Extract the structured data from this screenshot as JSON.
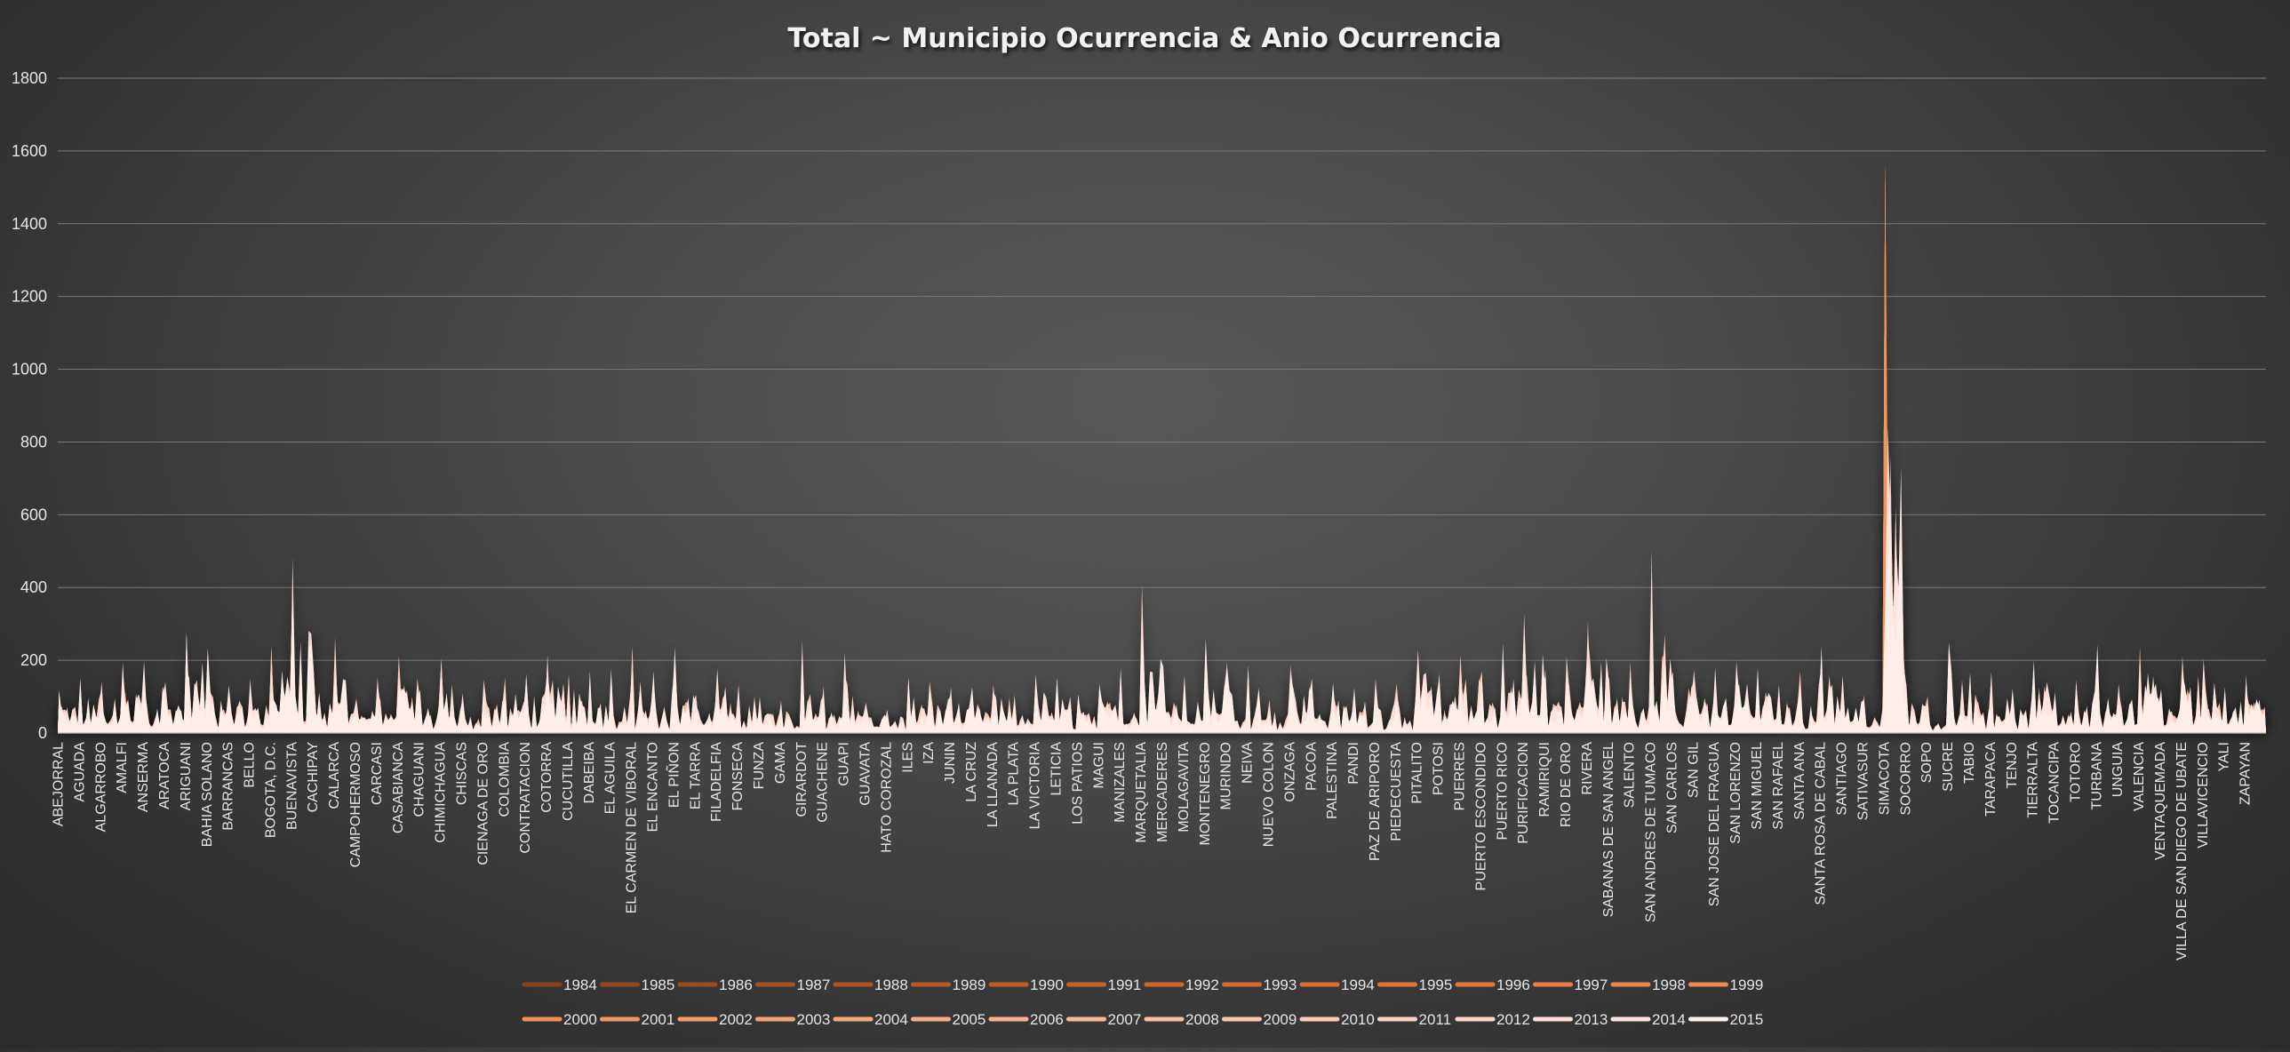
{
  "chart_data": {
    "type": "area",
    "title": "Total ~ Municipio Ocurrencia & Anio Ocurrencia",
    "xlabel": "",
    "ylabel": "",
    "ylim": [
      0,
      1800
    ],
    "yticks": [
      0,
      200,
      400,
      600,
      800,
      1000,
      1200,
      1400,
      1600,
      1800
    ],
    "grid": true,
    "legend_position": "bottom",
    "categories": [
      "ABEJORRAL",
      "AGUADA",
      "ALGARROBO",
      "AMALFI",
      "ANSERMA",
      "ARATOCA",
      "ARIGUANI",
      "BAHIA SOLANO",
      "BARRANCAS",
      "BELLO",
      "BOGOTA, D.C.",
      "BUENAVISTA",
      "CACHIPAY",
      "CALARCA",
      "CAMPOHERMOSO",
      "CARCASI",
      "CASABIANCA",
      "CHAGUANI",
      "CHIMICHAGUA",
      "CHISCAS",
      "CIENAGA DE ORO",
      "COLOMBIA",
      "CONTRATACION",
      "COTORRA",
      "CUCUTILLA",
      "DABEIBA",
      "EL AGUILA",
      "EL CARMEN DE VIBORAL",
      "EL ENCANTO",
      "EL PIÑON",
      "EL TARRA",
      "FILADELFIA",
      "FONSECA",
      "FUNZA",
      "GAMA",
      "GIRARDOT",
      "GUACHENE",
      "GUAPI",
      "GUAVATA",
      "HATO COROZAL",
      "ILES",
      "IZA",
      "JUNIN",
      "LA CRUZ",
      "LA LLANADA",
      "LA PLATA",
      "LA VICTORIA",
      "LETICIA",
      "LOS PATIOS",
      "MAGUI",
      "MANIZALES",
      "MARQUETALIA",
      "MERCADERES",
      "MOLAGAVITA",
      "MONTENEGRO",
      "MURINDO",
      "NEIVA",
      "NUEVO COLON",
      "ONZAGA",
      "PACOA",
      "PALESTINA",
      "PANDI",
      "PAZ DE ARIPORO",
      "PIEDECUESTA",
      "PITALITO",
      "POTOSI",
      "PUERRES",
      "PUERTO ESCONDIDO",
      "PUERTO RICO",
      "PURIFICACION",
      "RAMIRIQUI",
      "RIO DE ORO",
      "RIVERA",
      "SABANAS DE SAN ANGEL",
      "SALENTO",
      "SAN ANDRES DE TUMACO",
      "SAN CARLOS",
      "SAN GIL",
      "SAN JOSE DEL FRAGUA",
      "SAN LORENZO",
      "SAN MIGUEL",
      "SAN RAFAEL",
      "SANTA ANA",
      "SANTA ROSA DE CABAL",
      "SANTIAGO",
      "SATIVASUR",
      "SIMACOTA",
      "SOCORRO",
      "SOPO",
      "SUCRE",
      "TABIO",
      "TARAPACA",
      "TENJO",
      "TIERRALTA",
      "TOCANCIPA",
      "TOTORO",
      "TURBANA",
      "UNGUIA",
      "VALENCIA",
      "VENTAQUEMADA",
      "VILLA DE SAN DIEGO DE UBATE",
      "VILLAVICENCIO",
      "YALI",
      "ZAPAYAN"
    ],
    "values_max_estimated": [
      145,
      160,
      150,
      220,
      225,
      160,
      285,
      240,
      160,
      150,
      275,
      540,
      200,
      290,
      100,
      160,
      250,
      135,
      235,
      110,
      165,
      165,
      180,
      220,
      185,
      185,
      185,
      255,
      180,
      250,
      110,
      200,
      160,
      110,
      95,
      280,
      140,
      230,
      90,
      75,
      185,
      160,
      130,
      130,
      160,
      120,
      175,
      165,
      110,
      150,
      195,
      440,
      200,
      190,
      310,
      225,
      210,
      100,
      210,
      155,
      140,
      145,
      155,
      145,
      255,
      180,
      240,
      190,
      270,
      340,
      180,
      230,
      350,
      165,
      215,
      535,
      200,
      180,
      190,
      210,
      190,
      140,
      205,
      245,
      170,
      110,
      1560,
      140,
      120,
      300,
      175,
      190,
      130,
      210,
      125,
      170,
      275,
      150,
      280,
      130,
      235,
      220,
      130,
      180
    ],
    "series_peak_note": "",
    "series": [
      {
        "name": "1984",
        "color": "#8a4318"
      },
      {
        "name": "1985",
        "color": "#93471a"
      },
      {
        "name": "1986",
        "color": "#9c4c1c"
      },
      {
        "name": "1987",
        "color": "#a5501e"
      },
      {
        "name": "1988",
        "color": "#ae5420"
      },
      {
        "name": "1989",
        "color": "#b75922"
      },
      {
        "name": "1990",
        "color": "#bf5d24"
      },
      {
        "name": "1991",
        "color": "#c76226"
      },
      {
        "name": "1992",
        "color": "#cf6628"
      },
      {
        "name": "1993",
        "color": "#d56b2c"
      },
      {
        "name": "1994",
        "color": "#db7030"
      },
      {
        "name": "1995",
        "color": "#e07434"
      },
      {
        "name": "1996",
        "color": "#e4793a"
      },
      {
        "name": "1997",
        "color": "#e87e40"
      },
      {
        "name": "1998",
        "color": "#eb8447"
      },
      {
        "name": "1999",
        "color": "#ed8a4f"
      },
      {
        "name": "2000",
        "color": "#ef9058"
      },
      {
        "name": "2001",
        "color": "#f09661"
      },
      {
        "name": "2002",
        "color": "#f19c6a"
      },
      {
        "name": "2003",
        "color": "#f2a273"
      },
      {
        "name": "2004",
        "color": "#f3a87d"
      },
      {
        "name": "2005",
        "color": "#f4ae87"
      },
      {
        "name": "2006",
        "color": "#f5b491"
      },
      {
        "name": "2007",
        "color": "#f6ba9b"
      },
      {
        "name": "2008",
        "color": "#f7c0a5"
      },
      {
        "name": "2009",
        "color": "#f8c6af"
      },
      {
        "name": "2010",
        "color": "#f9ccb9"
      },
      {
        "name": "2011",
        "color": "#fad2c3"
      },
      {
        "name": "2012",
        "color": "#fbd8cc"
      },
      {
        "name": "2013",
        "color": "#fcdfd6"
      },
      {
        "name": "2014",
        "color": "#fde6e0"
      },
      {
        "name": "2015",
        "color": "#feeeea"
      }
    ]
  }
}
